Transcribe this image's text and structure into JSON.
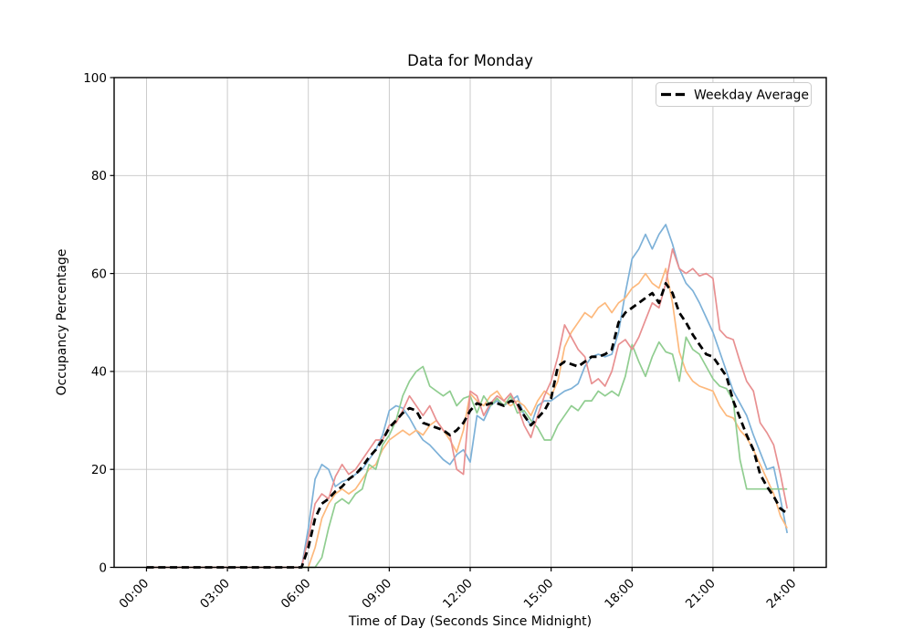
{
  "chart_data": {
    "type": "line",
    "title": "Data for Monday",
    "xlabel": "Time of Day (Seconds Since Midnight)",
    "ylabel": "Occupancy Percentage",
    "ylim": [
      0,
      100
    ],
    "grid": true,
    "legend": {
      "label": "Weekday Average",
      "position": "upper right"
    },
    "x_tick_labels": [
      "00:00",
      "03:00",
      "06:00",
      "09:00",
      "12:00",
      "15:00",
      "18:00",
      "21:00",
      "24:00"
    ],
    "x_tick_minutes": [
      0,
      180,
      360,
      540,
      720,
      900,
      1080,
      1260,
      1440
    ],
    "y_tick_labels": [
      "0",
      "20",
      "40",
      "60",
      "80",
      "100"
    ],
    "y_ticks": [
      0,
      20,
      40,
      60,
      80,
      100
    ],
    "x": {
      "start_minute": 0,
      "step_minutes": 15,
      "count": 96
    },
    "axis_color": "#000000",
    "grid_color": "#c6c6c6",
    "series": [
      {
        "name": "monday-series-1",
        "color": "#7db1d8",
        "width": 1.7,
        "dash": false,
        "values": [
          0,
          0,
          0,
          0,
          0,
          0,
          0,
          0,
          0,
          0,
          0,
          0,
          0,
          0,
          0,
          0,
          0,
          0,
          0,
          0,
          0,
          0,
          0,
          0,
          8,
          18,
          21,
          20,
          16.5,
          17.5,
          18,
          19,
          20,
          22,
          24,
          27,
          32,
          33,
          32.5,
          30.5,
          28,
          26,
          25,
          23.5,
          22,
          21,
          23,
          24,
          21.5,
          31,
          30,
          33,
          34,
          33,
          34,
          35,
          31,
          29,
          33,
          34,
          34,
          35,
          36,
          36.5,
          37.5,
          41,
          43,
          43.5,
          43,
          43.5,
          48,
          56,
          63,
          65,
          68,
          65,
          68,
          70,
          66,
          61,
          58,
          56.5,
          54,
          51,
          48,
          44,
          40,
          36,
          33.5,
          31,
          27,
          23.5,
          20,
          20.5,
          14,
          7
        ]
      },
      {
        "name": "monday-series-2",
        "color": "#fdb97d",
        "width": 1.7,
        "dash": false,
        "values": [
          0,
          0,
          0,
          0,
          0,
          0,
          0,
          0,
          0,
          0,
          0,
          0,
          0,
          0,
          0,
          0,
          0,
          0,
          0,
          0,
          0,
          0,
          0,
          0,
          0,
          4,
          10,
          13,
          15,
          16,
          15,
          16,
          18,
          20,
          21,
          24,
          26,
          27,
          28,
          27,
          28,
          27,
          29,
          30,
          28,
          26,
          23.5,
          28,
          35.5,
          34,
          33,
          35,
          36,
          34,
          33,
          34,
          33,
          31,
          34,
          36,
          35,
          38,
          45,
          48,
          50,
          52,
          51,
          53,
          54,
          52,
          54,
          55,
          57,
          58,
          60,
          58,
          57,
          61,
          54,
          44,
          40,
          38,
          37,
          36.5,
          36,
          33,
          31,
          30.5,
          28,
          26.5,
          24,
          21,
          18,
          15,
          10.5,
          8
        ]
      },
      {
        "name": "monday-series-3",
        "color": "#90cd90",
        "width": 1.7,
        "dash": false,
        "values": [
          0,
          0,
          0,
          0,
          0,
          0,
          0,
          0,
          0,
          0,
          0,
          0,
          0,
          0,
          0,
          0,
          0,
          0,
          0,
          0,
          0,
          0,
          0,
          0,
          0,
          0,
          2,
          8,
          13,
          14,
          13,
          15,
          16,
          21,
          20,
          25,
          27,
          30,
          35,
          38,
          40,
          41,
          37,
          36,
          35,
          36,
          33,
          34.5,
          35,
          31.5,
          35,
          33,
          34.5,
          33,
          35,
          31.5,
          32,
          30,
          28.5,
          26,
          26,
          29,
          31,
          33,
          32,
          34,
          34,
          36,
          35,
          36,
          35,
          39,
          45.5,
          42,
          39,
          43,
          46,
          44,
          43.5,
          38,
          47,
          44.5,
          43.5,
          41,
          38.5,
          37,
          36.5,
          34,
          22,
          16,
          16,
          16,
          16,
          16,
          16,
          16
        ]
      },
      {
        "name": "monday-series-4",
        "color": "#e89091",
        "width": 1.7,
        "dash": false,
        "values": [
          0,
          0,
          0,
          0,
          0,
          0,
          0,
          0,
          0,
          0,
          0,
          0,
          0,
          0,
          0,
          0,
          0,
          0,
          0,
          0,
          0,
          0,
          0,
          0,
          6,
          13,
          15,
          14,
          18.5,
          21,
          19,
          20,
          22,
          24,
          26,
          26,
          29,
          29.5,
          32,
          35,
          33,
          31,
          33,
          30,
          28,
          27,
          20,
          19,
          36,
          35,
          31,
          33.5,
          35,
          34,
          35.5,
          33,
          29,
          26.5,
          31,
          35,
          38,
          43,
          49.5,
          47,
          44.5,
          43,
          37.5,
          38.5,
          37,
          40,
          45.5,
          46.5,
          44.5,
          47,
          50.5,
          54,
          53,
          58,
          65,
          61,
          60,
          61,
          59.5,
          60,
          59,
          48.5,
          47,
          46.5,
          42,
          38,
          36,
          29.5,
          27.5,
          25,
          19,
          12
        ]
      },
      {
        "name": "weekday-average",
        "color": "#000000",
        "width": 2.8,
        "dash": true,
        "values": [
          0,
          0,
          0,
          0,
          0,
          0,
          0,
          0,
          0,
          0,
          0,
          0,
          0,
          0,
          0,
          0,
          0,
          0,
          0,
          0,
          0,
          0,
          0,
          0,
          4,
          10,
          13,
          14,
          15.5,
          16.5,
          18,
          19,
          20.5,
          22.5,
          24,
          26,
          28.5,
          30,
          31.5,
          32.5,
          32,
          29.5,
          29,
          28.5,
          28,
          27,
          28,
          29.5,
          32,
          33.5,
          33,
          33.5,
          33.5,
          33,
          34,
          33.5,
          31,
          29,
          30.5,
          32,
          34.5,
          41,
          42,
          41.5,
          41,
          42,
          43,
          43,
          43.5,
          44.5,
          50,
          52,
          53,
          54,
          55,
          56,
          54,
          58,
          56,
          52,
          50,
          47.5,
          45.5,
          43.5,
          43,
          41,
          39,
          34,
          30.5,
          27,
          24,
          19,
          16.5,
          14.5,
          12,
          11
        ]
      }
    ]
  }
}
